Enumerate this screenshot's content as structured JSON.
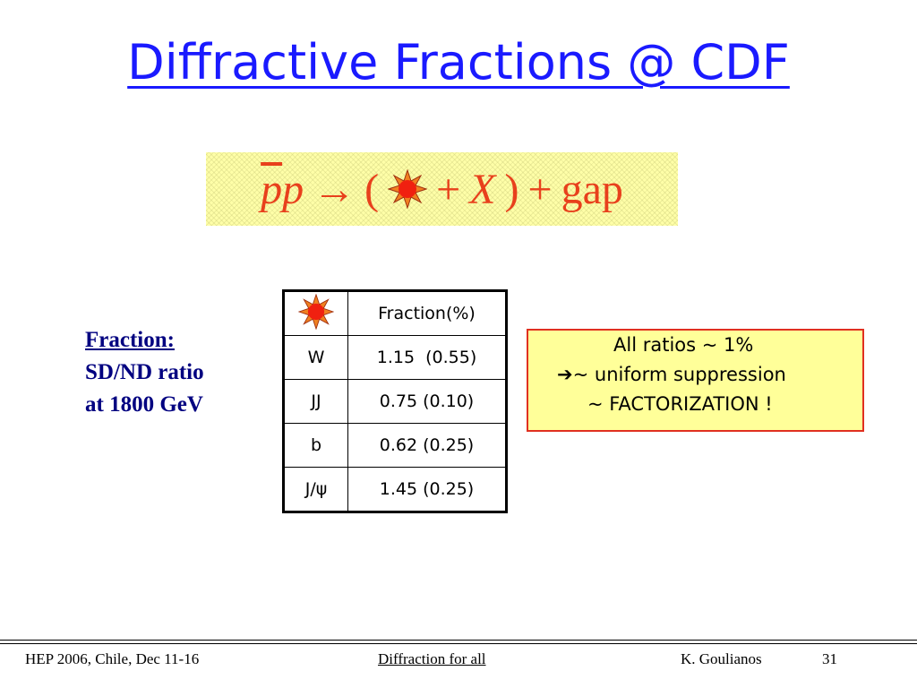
{
  "title": "Diffractive Fractions @ CDF",
  "formula": {
    "parts": [
      "p",
      "p",
      "→",
      "(",
      "+",
      "X",
      ")",
      "+",
      "gap"
    ]
  },
  "label": {
    "lines": [
      "Fraction:",
      "SD/ND ratio",
      "at 1800 GeV"
    ]
  },
  "table": {
    "header": "Fraction(%)",
    "rows": [
      [
        "W",
        "1.15  (0.55)"
      ],
      [
        "JJ",
        "0.75 (0.10)"
      ],
      [
        "b",
        "0.62 (0.25)"
      ],
      [
        "J/ψ",
        "1.45 (0.25)"
      ]
    ]
  },
  "note": {
    "lines": [
      "All ratios ~ 1%",
      "~ uniform suppression",
      "~ FACTORIZATION !"
    ]
  },
  "footer": {
    "left": "HEP 2006, Chile, Dec 11-16",
    "center": "Diffraction for all",
    "right": "K. Goulianos",
    "page": "31"
  }
}
